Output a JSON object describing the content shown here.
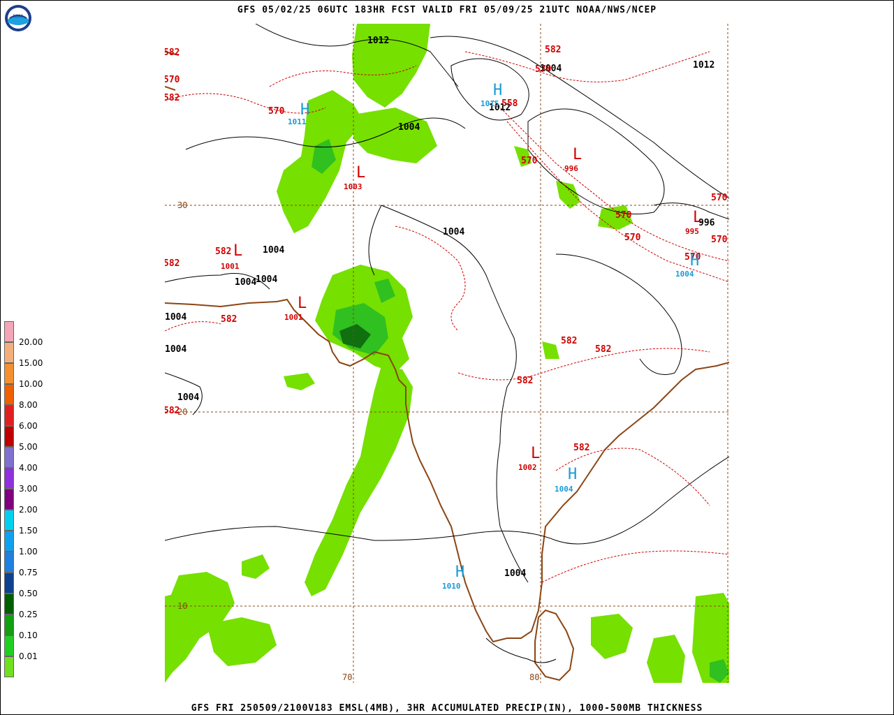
{
  "header": {
    "title": "GFS 05/02/25 06UTC 183HR FCST VALID FRI 05/09/25 21UTC NOAA/NWS/NCEP",
    "logo_text": "NOAA"
  },
  "footer": {
    "title": "GFS FRI 250509/2100V183 EMSL(4MB), 3HR ACCUMULATED PRECIP(IN), 1000-500MB THICKNESS"
  },
  "legend": {
    "items": [
      {
        "label": "",
        "color": "#f4a6b6"
      },
      {
        "label": "20.00",
        "color": "#f4b07c"
      },
      {
        "label": "15.00",
        "color": "#f49030"
      },
      {
        "label": "10.00",
        "color": "#f06000"
      },
      {
        "label": "8.00",
        "color": "#e02020"
      },
      {
        "label": "6.00",
        "color": "#c00000"
      },
      {
        "label": "5.00",
        "color": "#8070d0"
      },
      {
        "label": "4.00",
        "color": "#9030e0"
      },
      {
        "label": "3.00",
        "color": "#800080"
      },
      {
        "label": "2.00",
        "color": "#00d0f0"
      },
      {
        "label": "1.50",
        "color": "#10a0f0"
      },
      {
        "label": "1.00",
        "color": "#2080e0"
      },
      {
        "label": "0.75",
        "color": "#104090"
      },
      {
        "label": "0.50",
        "color": "#006000"
      },
      {
        "label": "0.25",
        "color": "#10a010"
      },
      {
        "label": "0.10",
        "color": "#20d020"
      },
      {
        "label": "0.01",
        "color": "#70e020"
      },
      {
        "label": "",
        "color": "#ffffff"
      }
    ]
  },
  "map": {
    "lat_labels": [
      "30",
      "20",
      "10"
    ],
    "lon_labels": [
      "70",
      "80"
    ],
    "pressure_labels": [
      "1012",
      "1004",
      "1012",
      "1004",
      "1012",
      "1004",
      "1004",
      "1004",
      "1004",
      "996",
      "1004",
      "1004",
      "1004",
      "1004"
    ],
    "thickness_labels": [
      "570",
      "582",
      "570",
      "570",
      "558",
      "570",
      "570",
      "570",
      "570",
      "570",
      "582",
      "582",
      "582",
      "582",
      "582",
      "582",
      "582",
      "570",
      "582",
      "582",
      "582"
    ],
    "highs": [
      {
        "symbol": "H",
        "value": "1011"
      },
      {
        "symbol": "H",
        "value": "1015"
      },
      {
        "symbol": "H",
        "value": "1004"
      },
      {
        "symbol": "H",
        "value": "1010"
      },
      {
        "symbol": "H",
        "value": "1004"
      }
    ],
    "lows": [
      {
        "symbol": "L",
        "value": "1003"
      },
      {
        "symbol": "L",
        "value": "996"
      },
      {
        "symbol": "L",
        "value": "995"
      },
      {
        "symbol": "L",
        "value": "1001"
      },
      {
        "symbol": "L",
        "value": "1001"
      },
      {
        "symbol": "L",
        "value": "1002"
      }
    ],
    "colors": {
      "precip_light": "#76e000",
      "precip_mid": "#30c020",
      "precip_dark": "#107010",
      "coastline": "#8b4513",
      "isobar": "#000000",
      "thickness": "#d00000",
      "high": "#1a9ad8",
      "low": "#d00000"
    }
  }
}
